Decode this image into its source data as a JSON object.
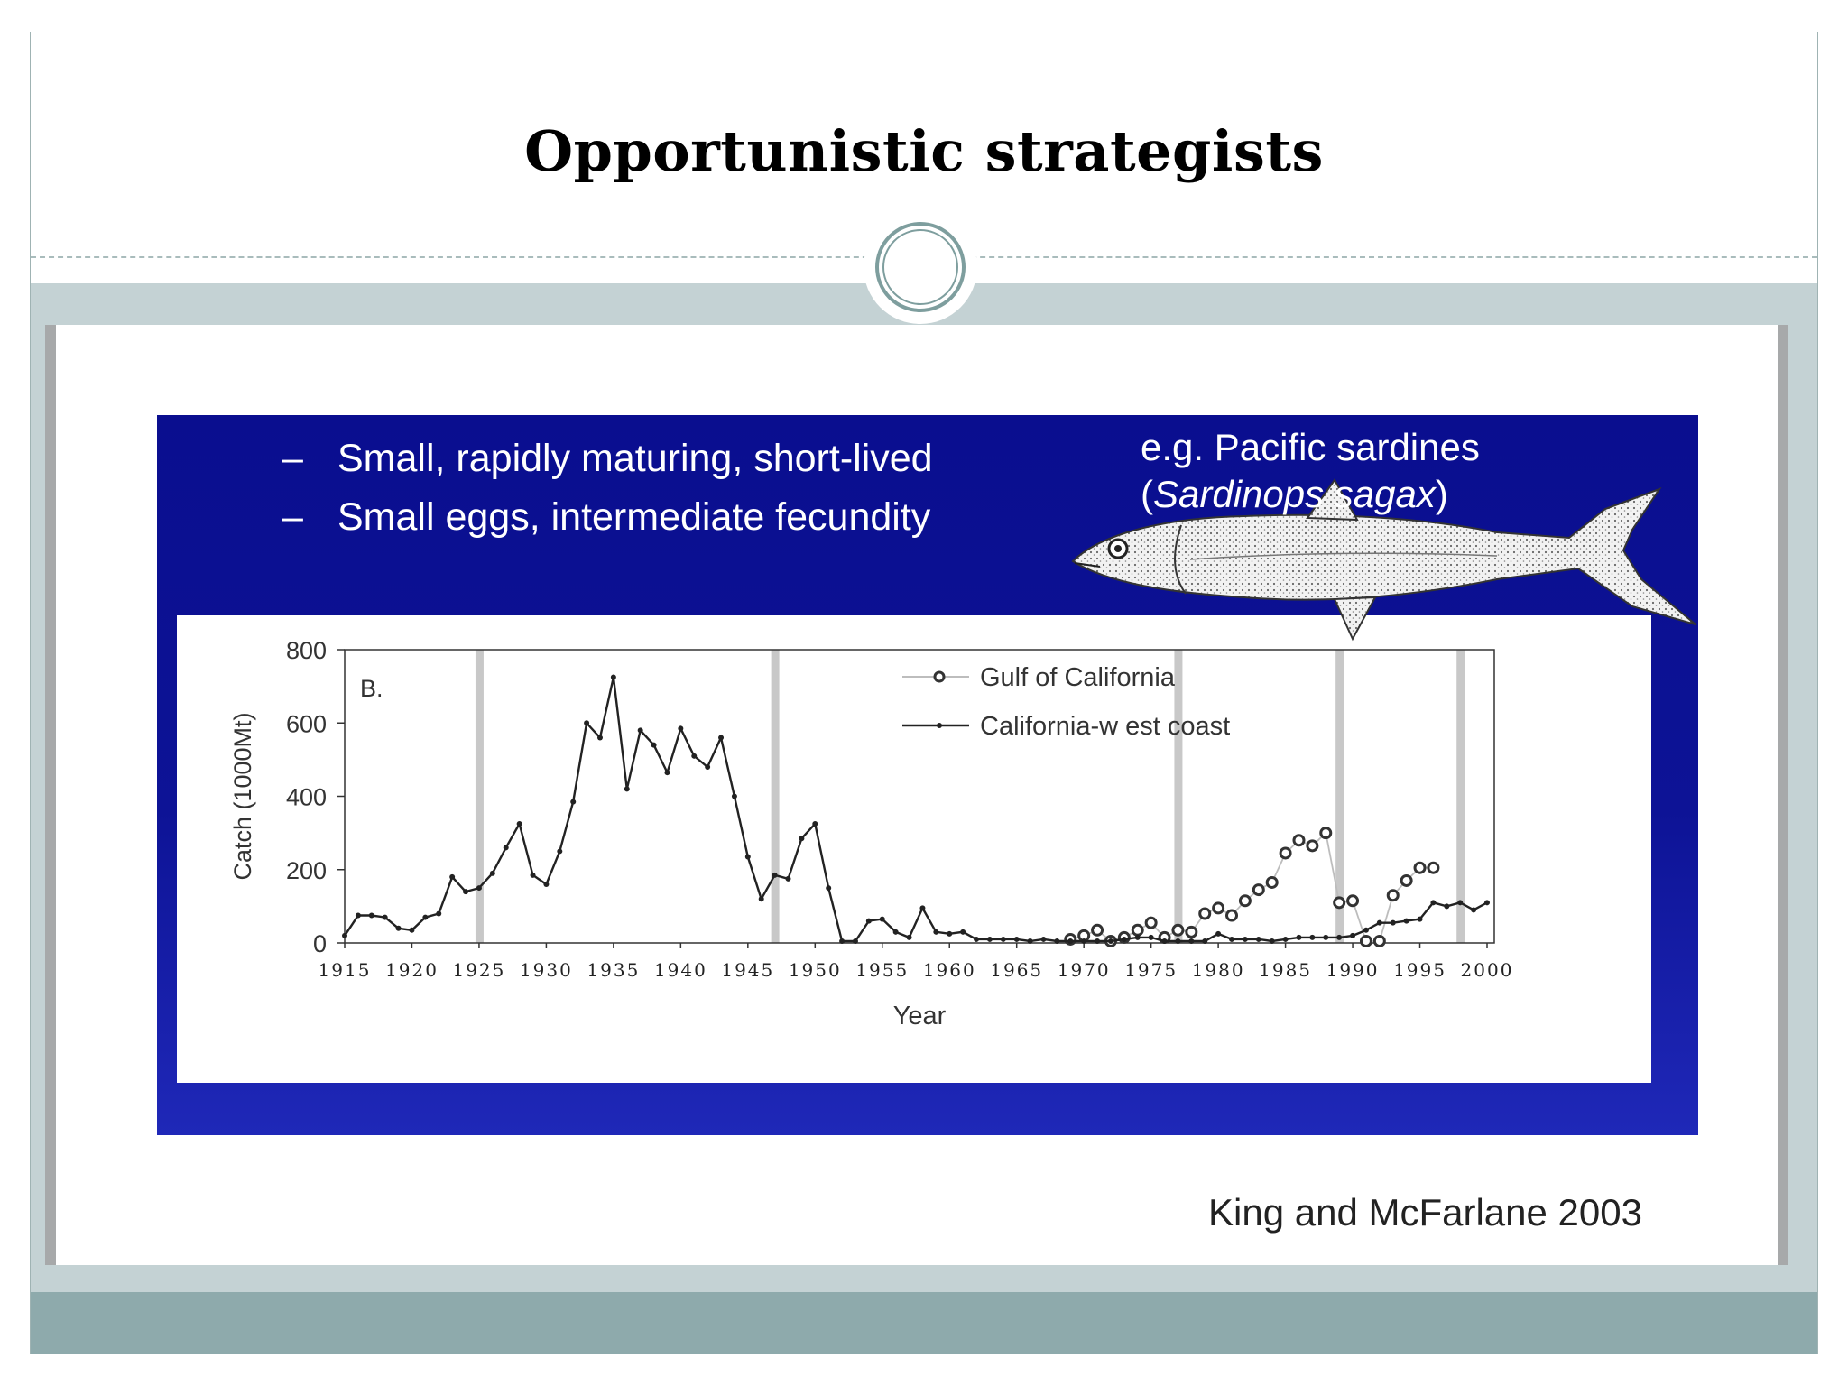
{
  "slide": {
    "title": "Opportunistic strategists",
    "bullets": [
      "Small, rapidly maturing, short-lived",
      "Small eggs, intermediate fecundity"
    ],
    "bullet_marker": "–",
    "example_line1": "e.g. Pacific sardines",
    "example_open": "(",
    "example_species": "Sardinops sagax",
    "example_close": ")",
    "citation": "King and McFarlane 2003"
  },
  "colors": {
    "background_band": "#c4d2d4",
    "footer": "#8eaaac",
    "blue_box": "#0a0e8f",
    "regime_bars": "#c8c8c8"
  },
  "chart_data": {
    "type": "line",
    "panel_label": "B.",
    "xlabel": "Year",
    "ylabel": "Catch (1000Mt)",
    "xlim": [
      1915,
      2000
    ],
    "ylim": [
      0,
      800
    ],
    "xticks": [
      1915,
      1920,
      1925,
      1930,
      1935,
      1940,
      1945,
      1950,
      1955,
      1960,
      1965,
      1970,
      1975,
      1980,
      1985,
      1990,
      1995,
      2000
    ],
    "yticks": [
      0,
      200,
      400,
      600,
      800
    ],
    "grid": false,
    "legend_position": "top-center",
    "regime_shift_years": [
      1925,
      1947,
      1977,
      1989,
      1998
    ],
    "series": [
      {
        "name": "Gulf of California",
        "marker": "open-circle",
        "line_color": "#bdbdbd",
        "x": [
          1969,
          1970,
          1971,
          1972,
          1973,
          1974,
          1975,
          1976,
          1977,
          1978,
          1979,
          1980,
          1981,
          1982,
          1983,
          1984,
          1985,
          1986,
          1987,
          1988,
          1989,
          1990,
          1991,
          1992,
          1993,
          1994,
          1995,
          1996
        ],
        "values": [
          10,
          20,
          35,
          5,
          15,
          35,
          55,
          15,
          35,
          30,
          80,
          95,
          75,
          115,
          145,
          165,
          245,
          280,
          265,
          300,
          110,
          115,
          5,
          5,
          130,
          170,
          205,
          205
        ]
      },
      {
        "name": "California-w est coast",
        "marker": "dot",
        "line_color": "#222222",
        "x": [
          1915,
          1916,
          1917,
          1918,
          1919,
          1920,
          1921,
          1922,
          1923,
          1924,
          1925,
          1926,
          1927,
          1928,
          1929,
          1930,
          1931,
          1932,
          1933,
          1934,
          1935,
          1936,
          1937,
          1938,
          1939,
          1940,
          1941,
          1942,
          1943,
          1944,
          1945,
          1946,
          1947,
          1948,
          1949,
          1950,
          1951,
          1952,
          1953,
          1954,
          1955,
          1956,
          1957,
          1958,
          1959,
          1960,
          1961,
          1962,
          1963,
          1964,
          1965,
          1966,
          1967,
          1968,
          1969,
          1970,
          1971,
          1972,
          1973,
          1974,
          1975,
          1976,
          1977,
          1978,
          1979,
          1980,
          1981,
          1982,
          1983,
          1984,
          1985,
          1986,
          1987,
          1988,
          1989,
          1990,
          1991,
          1992,
          1993,
          1994,
          1995,
          1996,
          1997,
          1998,
          1999,
          2000
        ],
        "values": [
          20,
          75,
          75,
          70,
          40,
          35,
          70,
          80,
          180,
          140,
          150,
          190,
          260,
          325,
          185,
          160,
          250,
          385,
          600,
          560,
          725,
          420,
          580,
          540,
          465,
          585,
          510,
          480,
          560,
          400,
          235,
          120,
          185,
          175,
          285,
          325,
          150,
          5,
          5,
          60,
          65,
          30,
          15,
          95,
          30,
          25,
          30,
          10,
          10,
          10,
          10,
          5,
          10,
          5,
          5,
          5,
          5,
          5,
          10,
          15,
          15,
          5,
          5,
          5,
          5,
          25,
          10,
          10,
          10,
          5,
          10,
          15,
          15,
          15,
          15,
          20,
          35,
          55,
          55,
          60,
          65,
          110,
          100,
          110,
          90,
          110
        ]
      }
    ]
  }
}
